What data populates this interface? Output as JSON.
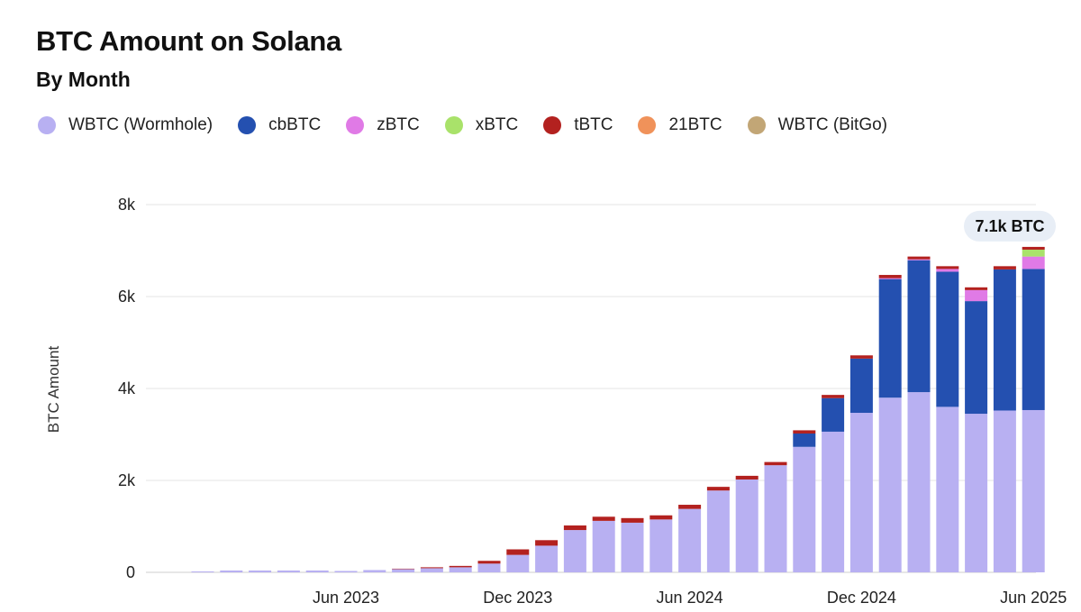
{
  "title": "BTC Amount on Solana",
  "subtitle": "By Month",
  "colors": {
    "WBTC (Wormhole)": "#b8b0f2",
    "cbBTC": "#2450b0",
    "zBTC": "#e07ae6",
    "xBTC": "#a9e26a",
    "tBTC": "#b3211f",
    "21BTC": "#f0925a",
    "WBTC (BitGo)": "#c2a676"
  },
  "legend": [
    "WBTC (Wormhole)",
    "cbBTC",
    "zBTC",
    "xBTC",
    "tBTC",
    "21BTC",
    "WBTC (BitGo)"
  ],
  "chart_data": {
    "type": "bar",
    "stacked": true,
    "title": "BTC Amount on Solana",
    "subtitle": "By Month",
    "ylabel": "BTC Amount",
    "xlabel": "",
    "ylim": [
      0,
      8000
    ],
    "yticks": [
      "0",
      "2k",
      "4k",
      "6k",
      "8k"
    ],
    "xtick_labels": [
      {
        "label": "Jun 2023",
        "category": "2023-06"
      },
      {
        "label": "Dec 2023",
        "category": "2023-12"
      },
      {
        "label": "Jun 2024",
        "category": "2024-06"
      },
      {
        "label": "Dec 2024",
        "category": "2024-12"
      },
      {
        "label": "Jun 2025",
        "category": "2025-06"
      }
    ],
    "grid": true,
    "legend_position": "top",
    "annotation": {
      "text": "7.1k BTC",
      "category": "2025-06"
    },
    "categories": [
      "2023-01",
      "2023-02",
      "2023-03",
      "2023-04",
      "2023-05",
      "2023-06",
      "2023-07",
      "2023-08",
      "2023-09",
      "2023-10",
      "2023-11",
      "2023-12",
      "2024-01",
      "2024-02",
      "2024-03",
      "2024-04",
      "2024-05",
      "2024-06",
      "2024-07",
      "2024-08",
      "2024-09",
      "2024-10",
      "2024-11",
      "2024-12",
      "2025-01",
      "2025-02",
      "2025-03",
      "2025-04",
      "2025-05",
      "2025-06"
    ],
    "series": [
      {
        "name": "WBTC (Wormhole)",
        "values": [
          20,
          40,
          40,
          40,
          40,
          30,
          50,
          70,
          90,
          110,
          190,
          380,
          580,
          920,
          1120,
          1080,
          1150,
          1380,
          1780,
          2020,
          2330,
          2730,
          3060,
          3470,
          3800,
          3920,
          3600,
          3450,
          3520,
          3530
        ]
      },
      {
        "name": "cbBTC",
        "values": [
          0,
          0,
          0,
          0,
          0,
          0,
          0,
          0,
          0,
          0,
          0,
          0,
          0,
          0,
          0,
          0,
          0,
          0,
          0,
          0,
          0,
          290,
          730,
          1180,
          2580,
          2870,
          2940,
          2450,
          3070,
          3070
        ]
      },
      {
        "name": "zBTC",
        "values": [
          0,
          0,
          0,
          0,
          0,
          0,
          0,
          0,
          0,
          0,
          0,
          0,
          0,
          0,
          0,
          0,
          0,
          0,
          0,
          0,
          0,
          0,
          0,
          0,
          20,
          20,
          60,
          240,
          0,
          270
        ]
      },
      {
        "name": "xBTC",
        "values": [
          0,
          0,
          0,
          0,
          0,
          0,
          0,
          0,
          0,
          0,
          0,
          0,
          0,
          0,
          0,
          0,
          0,
          0,
          0,
          0,
          0,
          0,
          0,
          0,
          0,
          0,
          0,
          0,
          0,
          150
        ]
      },
      {
        "name": "tBTC",
        "values": [
          0,
          0,
          0,
          0,
          0,
          0,
          0,
          10,
          20,
          30,
          60,
          120,
          120,
          100,
          90,
          100,
          90,
          90,
          80,
          80,
          70,
          70,
          70,
          70,
          70,
          60,
          60,
          60,
          70,
          60
        ]
      },
      {
        "name": "21BTC",
        "values": [
          0,
          0,
          0,
          0,
          0,
          0,
          0,
          0,
          0,
          0,
          0,
          0,
          0,
          0,
          0,
          0,
          0,
          0,
          0,
          0,
          0,
          0,
          0,
          0,
          0,
          0,
          0,
          0,
          0,
          0
        ]
      },
      {
        "name": "WBTC (BitGo)",
        "values": [
          0,
          0,
          0,
          0,
          0,
          0,
          0,
          0,
          0,
          0,
          0,
          0,
          0,
          0,
          0,
          0,
          0,
          0,
          0,
          0,
          0,
          0,
          0,
          0,
          0,
          0,
          0,
          0,
          0,
          0
        ]
      }
    ]
  }
}
